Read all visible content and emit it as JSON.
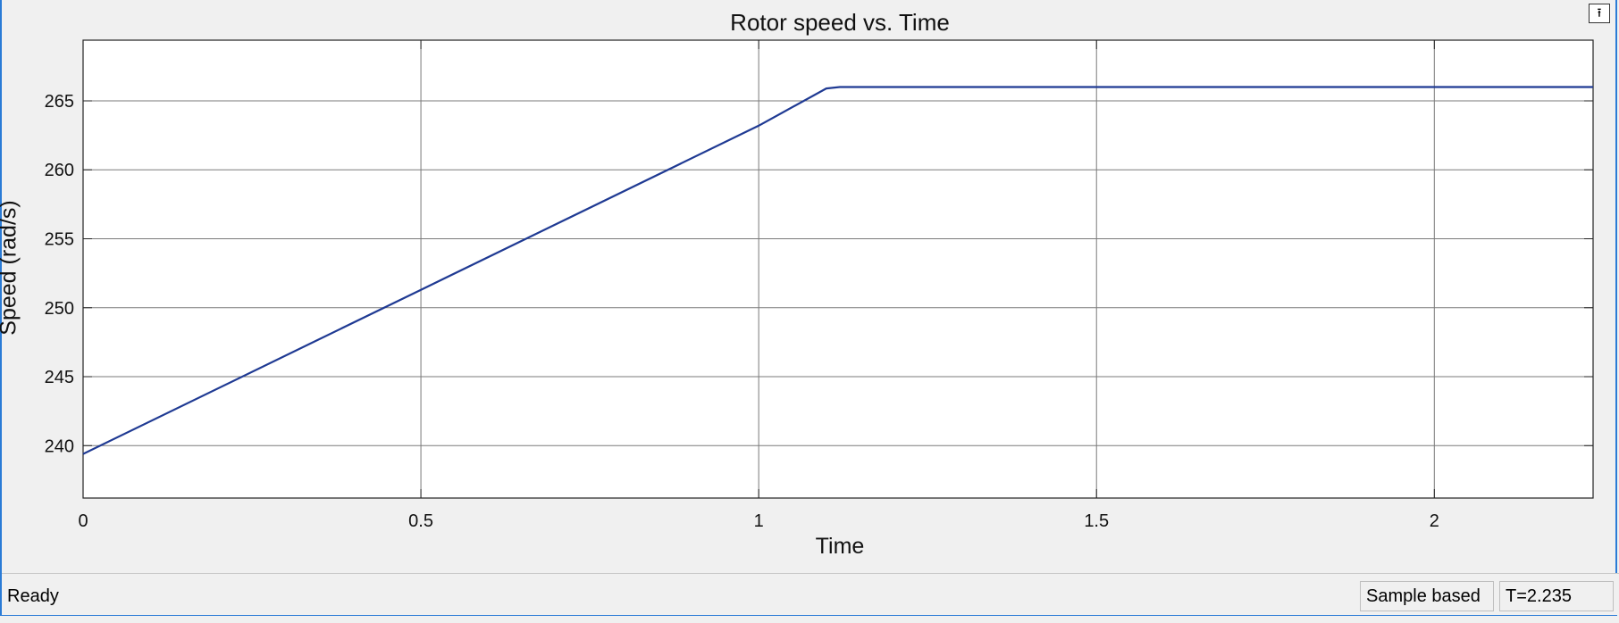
{
  "window": {
    "undock_icon": "undock-arrow-icon"
  },
  "chart_data": {
    "type": "line",
    "title": "Rotor speed vs. Time",
    "xlabel": "Time",
    "ylabel": "Speed (rad/s)",
    "xlim": [
      0,
      2.235
    ],
    "ylim": [
      236.2,
      269.4
    ],
    "xticks": [
      0,
      0.5,
      1,
      1.5,
      2
    ],
    "xtick_labels": [
      "0",
      "0.5",
      "1",
      "1.5",
      "2"
    ],
    "yticks": [
      240,
      245,
      250,
      255,
      260,
      265
    ],
    "ytick_labels": [
      "240",
      "245",
      "250",
      "255",
      "260",
      "265"
    ],
    "grid": true,
    "legend": "none",
    "color": "#1f3a93",
    "series": [
      {
        "x": [
          0,
          0.5,
          1.0,
          1.1,
          1.12,
          1.15,
          1.5,
          2.0,
          2.235
        ],
        "values": [
          239.4,
          251.3,
          263.2,
          265.9,
          266.0,
          266.0,
          266.0,
          266.0,
          266.0
        ]
      }
    ]
  },
  "status": {
    "text": "Ready",
    "mode": "Sample based",
    "time": "T=2.235"
  }
}
